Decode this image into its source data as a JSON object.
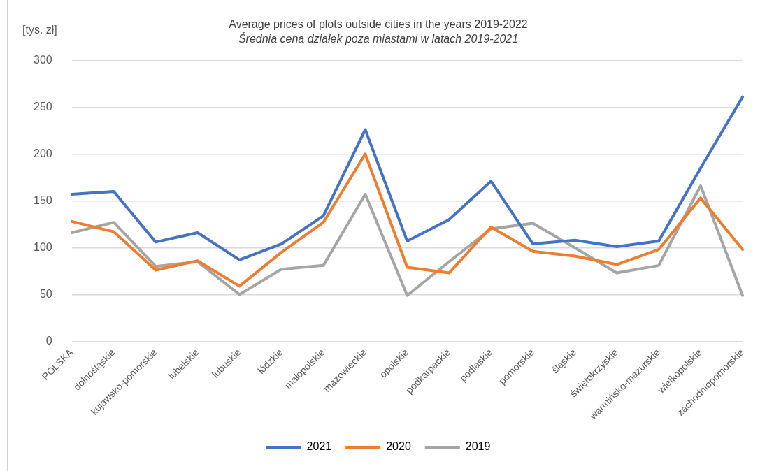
{
  "chart_data": {
    "type": "line",
    "title": "Average prices of plots outside cities in the years 2019-2022",
    "subtitle": "Średnia cena działek poza miastami w latach 2019-2021",
    "ylabel": "[tys. zł]",
    "categories": [
      "POLSKA",
      "dolnośląskie",
      "kujawsko-pomorskie",
      "lubelskie",
      "lubuskie",
      "łódzkie",
      "małopolskie",
      "mazowieckie",
      "opolskie",
      "podkarpackie",
      "podlaskie",
      "pomorskie",
      "śląskie",
      "świętokrzyskie",
      "warmińsko-mazurskie",
      "wielkopolskie",
      "zachodniopomorskie"
    ],
    "series": [
      {
        "name": "2021",
        "color": "#4472c4",
        "values": [
          157,
          160,
          106,
          116,
          87,
          104,
          134,
          226,
          107,
          130,
          171,
          104,
          108,
          101,
          107,
          185,
          261
        ]
      },
      {
        "name": "2020",
        "color": "#ed7d31",
        "values": [
          128,
          117,
          76,
          86,
          59,
          95,
          127,
          200,
          79,
          73,
          122,
          96,
          91,
          82,
          98,
          153,
          98
        ]
      },
      {
        "name": "2019",
        "color": "#a5a5a5",
        "values": [
          116,
          127,
          80,
          85,
          50,
          77,
          81,
          157,
          49,
          85,
          120,
          126,
          100,
          73,
          81,
          166,
          49
        ]
      }
    ],
    "ylim": [
      0,
      300
    ],
    "yticks": [
      0,
      50,
      100,
      150,
      200,
      250,
      300
    ],
    "grid": "y",
    "legend": "bottom",
    "marker": "none",
    "line_style": "solid"
  }
}
